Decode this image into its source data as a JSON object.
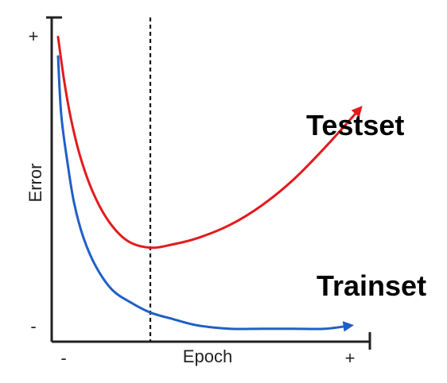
{
  "chart_data": {
    "type": "line",
    "title": "",
    "xlabel": "Epoch",
    "ylabel": "Error",
    "x_ticks": {
      "min": "-",
      "max": "+"
    },
    "y_ticks": {
      "min": "-",
      "max": "+"
    },
    "grid": false,
    "legend": "inline",
    "annotations": [
      {
        "name": "early-stopping-marker",
        "type": "vertical-dashed-line",
        "x": 0.31
      }
    ],
    "series": [
      {
        "name": "Testset",
        "color": "#e31a1c",
        "arrow_end": true,
        "x": [
          0.02,
          0.04,
          0.06,
          0.09,
          0.13,
          0.18,
          0.24,
          0.31,
          0.38,
          0.46,
          0.56,
          0.66,
          0.76,
          0.86,
          0.97
        ],
        "y": [
          0.94,
          0.8,
          0.69,
          0.57,
          0.46,
          0.37,
          0.31,
          0.29,
          0.3,
          0.32,
          0.36,
          0.42,
          0.5,
          0.6,
          0.72
        ]
      },
      {
        "name": "Trainset",
        "color": "#1f5fc8",
        "arrow_end": true,
        "x": [
          0.02,
          0.03,
          0.05,
          0.07,
          0.1,
          0.14,
          0.19,
          0.25,
          0.31,
          0.38,
          0.46,
          0.56,
          0.66,
          0.76,
          0.86,
          0.94
        ],
        "y": [
          0.88,
          0.7,
          0.55,
          0.43,
          0.32,
          0.23,
          0.16,
          0.12,
          0.09,
          0.07,
          0.05,
          0.04,
          0.04,
          0.04,
          0.04,
          0.05
        ]
      }
    ]
  }
}
